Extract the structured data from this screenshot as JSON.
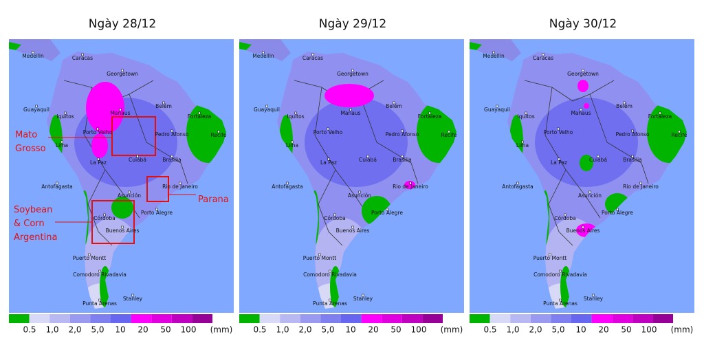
{
  "panels": [
    {
      "title": "Ngày 28/12"
    },
    {
      "title": "Ngày 29/12"
    },
    {
      "title": "Ngày 30/12"
    }
  ],
  "cities": [
    "Caracas",
    "Medellin",
    "Georgetown",
    "Guayaquil",
    "Iquitos",
    "Manaus",
    "Belém",
    "Fortaleza",
    "Recife",
    "Porto Velho",
    "Pedro Afonso",
    "Lima",
    "La Paz",
    "Cuiabá",
    "Brasilia",
    "Antofagasta",
    "Asunción",
    "Rio de Janeiro",
    "Córdoba",
    "Porto Alegre",
    "Buenos Aires",
    "Puerto Montt",
    "Comodoro Rivadavia",
    "Punta Arenas",
    "Stanley"
  ],
  "legend": {
    "labels": [
      "0.5",
      "1,0",
      "2,0",
      "5,0",
      "10",
      "20",
      "50",
      "100"
    ],
    "unit": "(mm)"
  },
  "annotations": [
    {
      "lines": [
        "Mato",
        "Grosso"
      ]
    },
    {
      "lines": [
        "Soybean",
        "& Corn",
        "Argentina"
      ]
    },
    {
      "lines": [
        "Parana"
      ]
    }
  ]
}
